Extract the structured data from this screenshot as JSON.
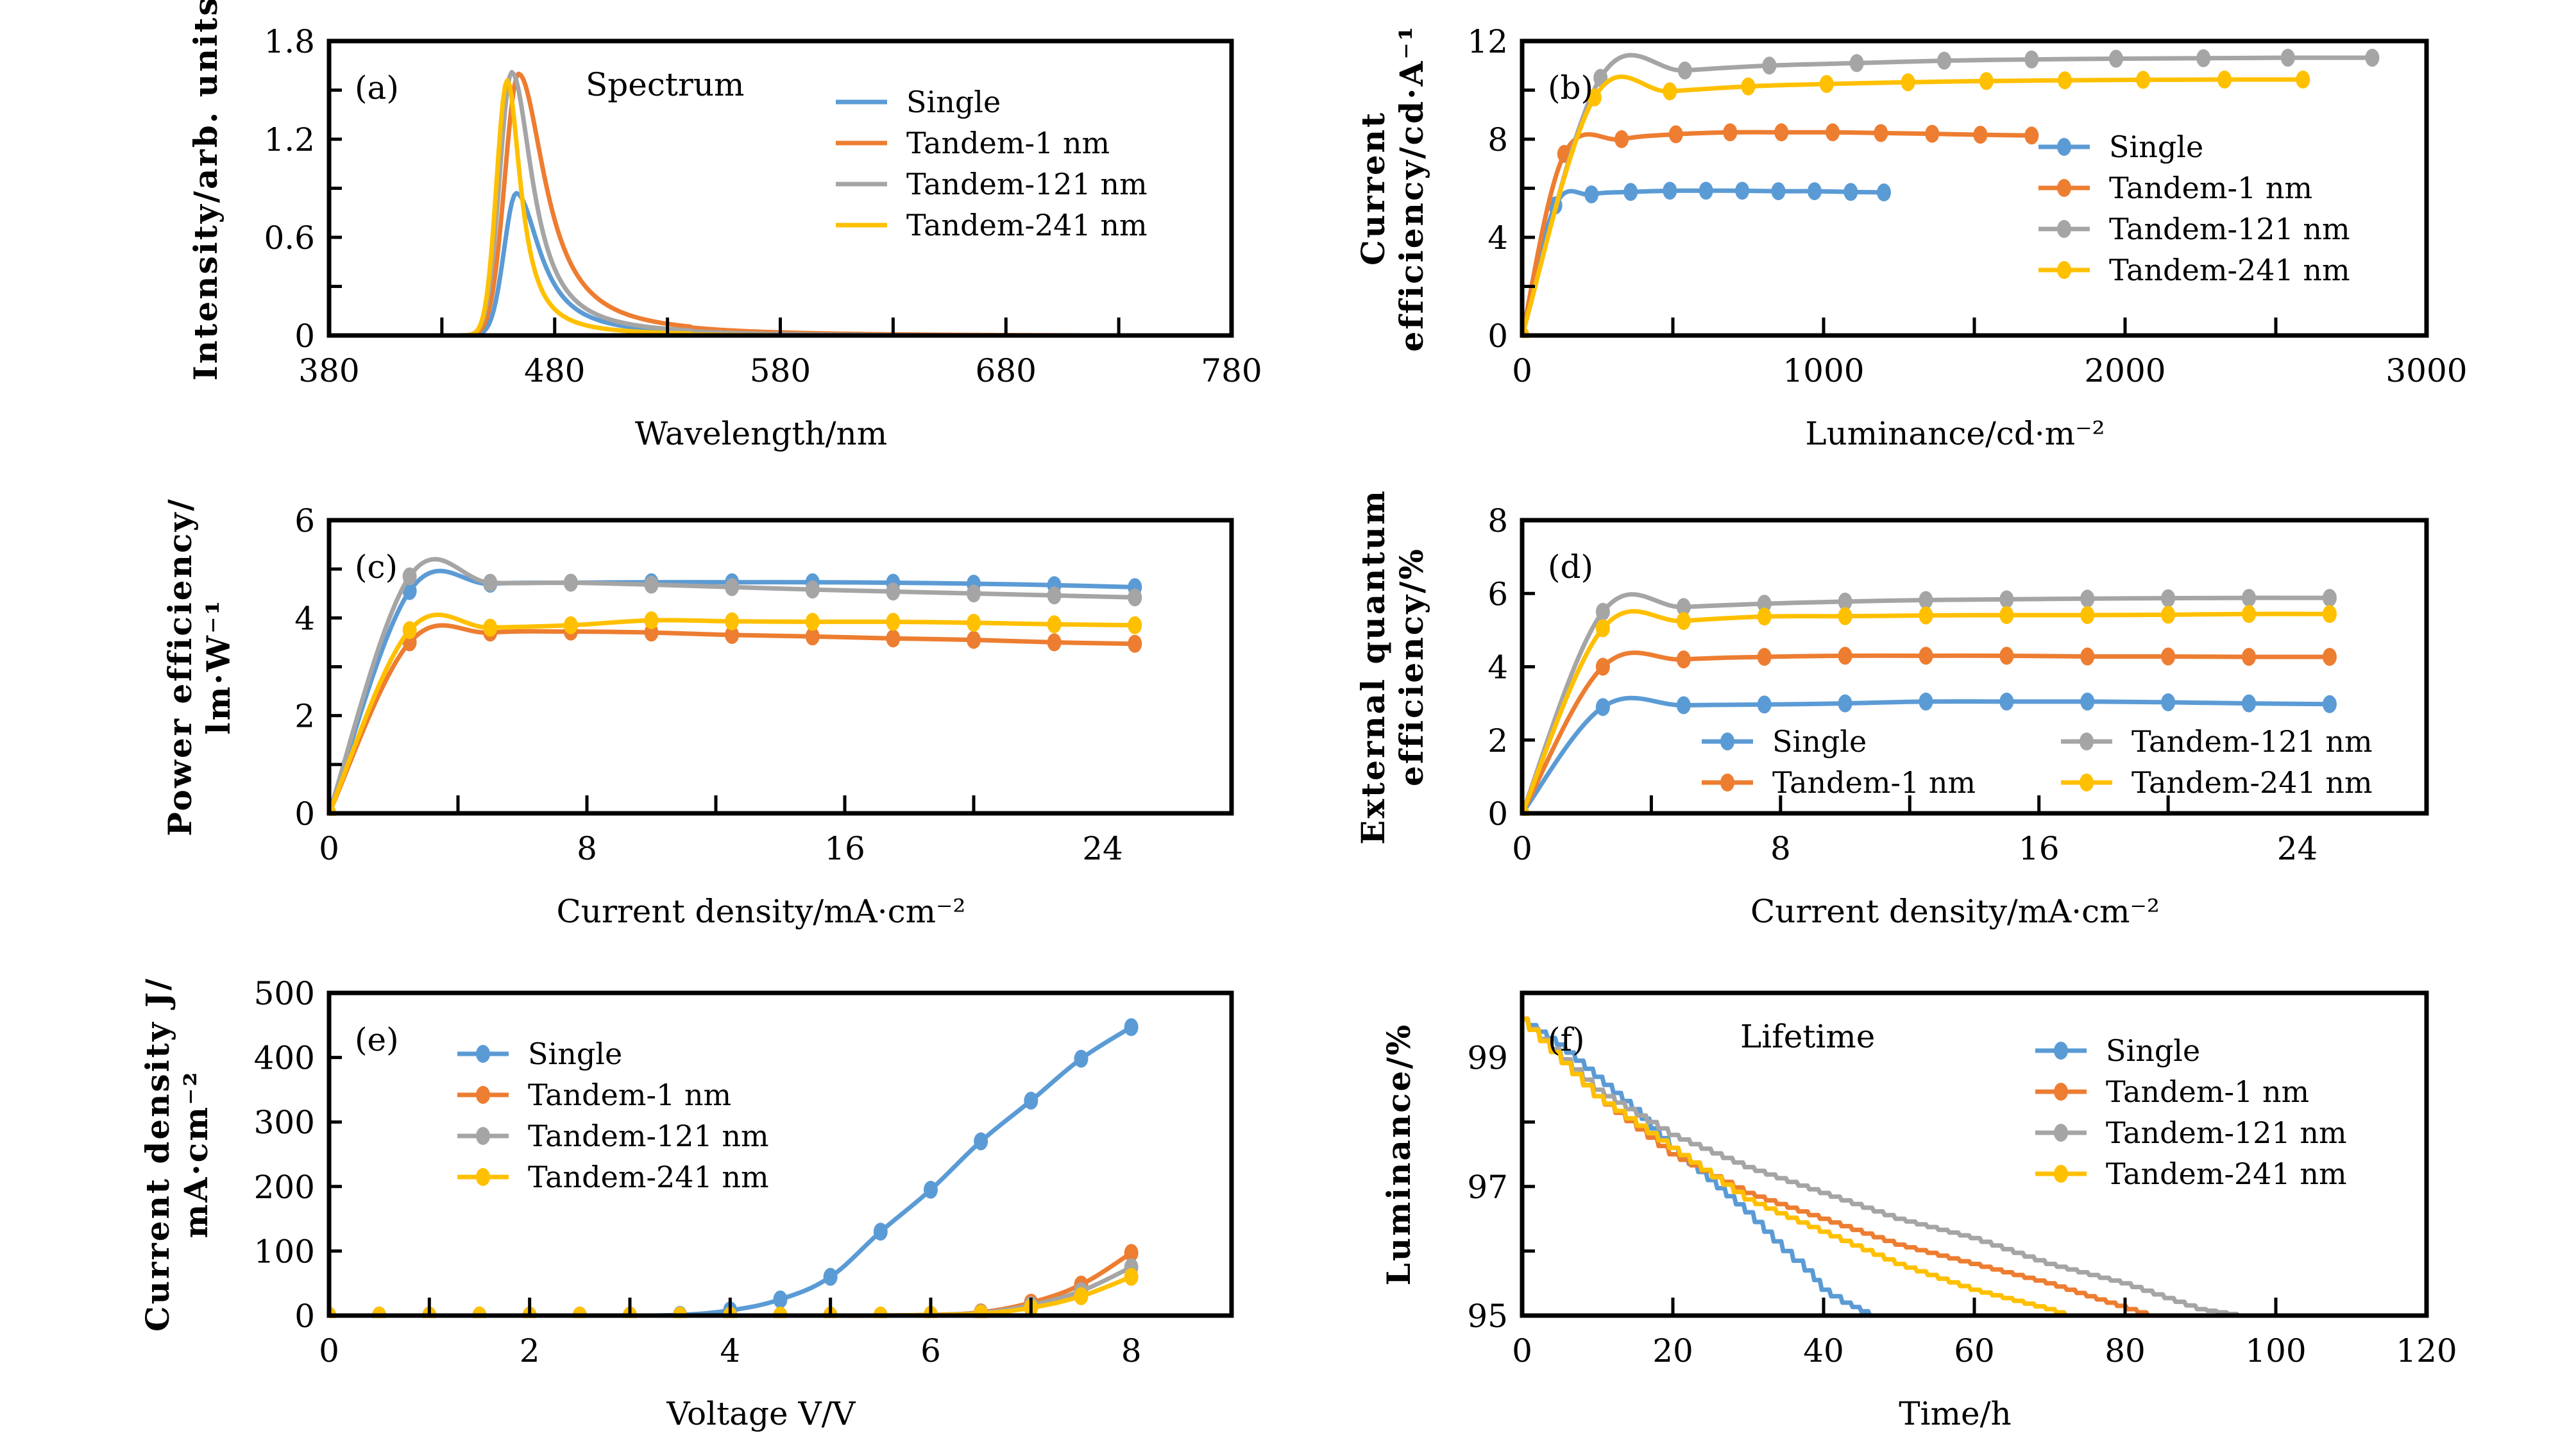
{
  "figure": {
    "series_names": [
      "Single",
      "Tandem-1 nm",
      "Tandem-121 nm",
      "Tandem-241 nm"
    ],
    "colors": {
      "Single": "#5b9bd5",
      "Tandem-1 nm": "#ed7d31",
      "Tandem-121 nm": "#a5a5a5",
      "Tandem-241 nm": "#ffc000"
    }
  },
  "chart_data": [
    {
      "id": "a",
      "type": "line",
      "panel_tag": "(a)",
      "title": "Spectrum",
      "xlabel": "Wavelength/nm",
      "ylabel": "Intensity/arb. units",
      "xlim": [
        380,
        780
      ],
      "ylim": [
        0,
        1.8
      ],
      "xticks": [
        380,
        480,
        580,
        680,
        780
      ],
      "xtick_labels": [
        "380",
        "480",
        "580",
        "680",
        "780"
      ],
      "xminor": [
        430,
        530,
        630,
        730
      ],
      "yticks": [
        0,
        0.6,
        1.2,
        1.8
      ],
      "ytick_labels": [
        "0",
        "0.6",
        "1.2",
        "1.8"
      ],
      "yminor": [
        0.3,
        0.9,
        1.5
      ],
      "markers": false,
      "legend": {
        "position": "top-right",
        "columns": 1
      },
      "grid": false,
      "series": [
        {
          "name": "Single",
          "peak_nm": 463,
          "peak": 0.87,
          "width_left": 8,
          "width_right": 16
        },
        {
          "name": "Tandem-1 nm",
          "peak_nm": 464,
          "peak": 1.6,
          "width_left": 9,
          "width_right": 18
        },
        {
          "name": "Tandem-121 nm",
          "peak_nm": 461,
          "peak": 1.61,
          "width_left": 8,
          "width_right": 14
        },
        {
          "name": "Tandem-241 nm",
          "peak_nm": 459,
          "peak": 1.56,
          "width_left": 7,
          "width_right": 9
        }
      ]
    },
    {
      "id": "b",
      "type": "line",
      "panel_tag": "(b)",
      "title": "",
      "xlabel": "Luminance/cd·m⁻²",
      "ylabel_lines": [
        "Current",
        "efficiency/cd·A⁻¹"
      ],
      "xlim": [
        0,
        3000
      ],
      "ylim": [
        0,
        12
      ],
      "xticks": [
        0,
        1000,
        2000,
        3000
      ],
      "xtick_labels": [
        "0",
        "1000",
        "2000",
        "3000"
      ],
      "xminor": [
        500,
        1500,
        2500
      ],
      "yticks": [
        0,
        4,
        8,
        12
      ],
      "ytick_labels": [
        "0",
        "4",
        "8",
        "12"
      ],
      "yminor": [
        2,
        6,
        10
      ],
      "markers": true,
      "legend": {
        "position": "center-right",
        "columns": 1
      },
      "grid": false,
      "series": [
        {
          "name": "Single",
          "x": [
            0,
            110,
            230,
            360,
            490,
            610,
            730,
            850,
            970,
            1090,
            1200
          ],
          "y": [
            0,
            5.3,
            5.75,
            5.85,
            5.9,
            5.9,
            5.9,
            5.88,
            5.88,
            5.85,
            5.83
          ]
        },
        {
          "name": "Tandem-1 nm",
          "x": [
            0,
            140,
            330,
            510,
            690,
            860,
            1030,
            1190,
            1360,
            1520,
            1690
          ],
          "y": [
            0,
            7.4,
            8.0,
            8.2,
            8.28,
            8.28,
            8.28,
            8.25,
            8.22,
            8.18,
            8.15
          ]
        },
        {
          "name": "Tandem-121 nm",
          "x": [
            0,
            260,
            540,
            820,
            1110,
            1400,
            1690,
            1970,
            2260,
            2540,
            2820
          ],
          "y": [
            0,
            10.5,
            10.8,
            11.0,
            11.1,
            11.2,
            11.25,
            11.28,
            11.3,
            11.32,
            11.32
          ]
        },
        {
          "name": "Tandem-241 nm",
          "x": [
            0,
            240,
            490,
            750,
            1010,
            1280,
            1540,
            1800,
            2060,
            2330,
            2590
          ],
          "y": [
            0,
            9.7,
            9.95,
            10.15,
            10.25,
            10.32,
            10.37,
            10.4,
            10.42,
            10.43,
            10.43
          ]
        }
      ]
    },
    {
      "id": "c",
      "type": "line",
      "panel_tag": "(c)",
      "title": "",
      "xlabel": "Current density/mA·cm⁻²",
      "ylabel_lines": [
        "Power efficiency/",
        "lm·W⁻¹"
      ],
      "xlim": [
        0,
        28
      ],
      "ylim": [
        0,
        6
      ],
      "xticks": [
        0,
        8,
        16,
        24
      ],
      "xtick_labels": [
        "0",
        "8",
        "16",
        "24"
      ],
      "xminor": [
        4,
        12,
        20
      ],
      "yticks": [
        0,
        2,
        4,
        6
      ],
      "ytick_labels": [
        "0",
        "2",
        "4",
        "6"
      ],
      "yminor": [
        1,
        3,
        5
      ],
      "markers": true,
      "legend": null,
      "grid": false,
      "series": [
        {
          "name": "Single",
          "x": [
            0,
            2.5,
            5,
            7.5,
            10,
            12.5,
            15,
            17.5,
            20,
            22.5,
            25
          ],
          "y": [
            0,
            4.55,
            4.7,
            4.72,
            4.73,
            4.73,
            4.73,
            4.72,
            4.7,
            4.67,
            4.63
          ]
        },
        {
          "name": "Tandem-1 nm",
          "x": [
            0,
            2.5,
            5,
            7.5,
            10,
            12.5,
            15,
            17.5,
            20,
            22.5,
            25
          ],
          "y": [
            0,
            3.5,
            3.7,
            3.72,
            3.7,
            3.65,
            3.62,
            3.58,
            3.55,
            3.5,
            3.47
          ]
        },
        {
          "name": "Tandem-121 nm",
          "x": [
            0,
            2.5,
            5,
            7.5,
            10,
            12.5,
            15,
            17.5,
            20,
            22.5,
            25
          ],
          "y": [
            0,
            4.85,
            4.72,
            4.72,
            4.68,
            4.63,
            4.58,
            4.54,
            4.5,
            4.46,
            4.42
          ]
        },
        {
          "name": "Tandem-241 nm",
          "x": [
            0,
            2.5,
            5,
            7.5,
            10,
            12.5,
            15,
            17.5,
            20,
            22.5,
            25
          ],
          "y": [
            0,
            3.75,
            3.8,
            3.85,
            3.95,
            3.93,
            3.92,
            3.92,
            3.9,
            3.87,
            3.85
          ]
        }
      ]
    },
    {
      "id": "d",
      "type": "line",
      "panel_tag": "(d)",
      "title": "",
      "xlabel": "Current density/mA·cm⁻²",
      "ylabel_lines": [
        "External quantum",
        "efficiency/%"
      ],
      "xlim": [
        0,
        28
      ],
      "ylim": [
        0,
        8
      ],
      "xticks": [
        0,
        8,
        16,
        24
      ],
      "xtick_labels": [
        "0",
        "8",
        "16",
        "24"
      ],
      "xminor": [
        4,
        12,
        20
      ],
      "yticks": [
        0,
        2,
        4,
        6,
        8
      ],
      "ytick_labels": [
        "0",
        "2",
        "4",
        "6",
        "8"
      ],
      "yminor": [],
      "markers": true,
      "legend": {
        "position": "lower-right",
        "columns": 2
      },
      "grid": false,
      "series": [
        {
          "name": "Single",
          "x": [
            0,
            2.5,
            5,
            7.5,
            10,
            12.5,
            15,
            17.5,
            20,
            22.5,
            25
          ],
          "y": [
            0,
            2.9,
            2.95,
            2.97,
            3.0,
            3.05,
            3.05,
            3.05,
            3.03,
            3.0,
            2.98
          ]
        },
        {
          "name": "Tandem-1 nm",
          "x": [
            0,
            2.5,
            5,
            7.5,
            10,
            12.5,
            15,
            17.5,
            20,
            22.5,
            25
          ],
          "y": [
            0,
            4.0,
            4.2,
            4.27,
            4.3,
            4.3,
            4.3,
            4.28,
            4.28,
            4.27,
            4.27
          ]
        },
        {
          "name": "Tandem-121 nm",
          "x": [
            0,
            2.5,
            5,
            7.5,
            10,
            12.5,
            15,
            17.5,
            20,
            22.5,
            25
          ],
          "y": [
            0,
            5.5,
            5.63,
            5.72,
            5.78,
            5.82,
            5.84,
            5.86,
            5.87,
            5.88,
            5.88
          ]
        },
        {
          "name": "Tandem-241 nm",
          "x": [
            0,
            2.5,
            5,
            7.5,
            10,
            12.5,
            15,
            17.5,
            20,
            22.5,
            25
          ],
          "y": [
            0,
            5.05,
            5.25,
            5.37,
            5.38,
            5.4,
            5.41,
            5.41,
            5.42,
            5.44,
            5.44
          ]
        }
      ]
    },
    {
      "id": "e",
      "type": "line",
      "panel_tag": "(e)",
      "title": "",
      "xlabel": "Voltage V/V",
      "ylabel_lines": [
        "Current density J/",
        "mA·cm⁻²"
      ],
      "xlim": [
        0,
        9
      ],
      "ylim": [
        0,
        500
      ],
      "xticks": [
        0,
        2,
        4,
        6,
        8
      ],
      "xtick_labels": [
        "0",
        "2",
        "4",
        "6",
        "8"
      ],
      "xminor": [
        1,
        3,
        5,
        7
      ],
      "yticks": [
        0,
        100,
        200,
        300,
        400,
        500
      ],
      "ytick_labels": [
        "0",
        "100",
        "200",
        "300",
        "400",
        "500"
      ],
      "yminor": [],
      "markers": true,
      "legend": {
        "position": "top-left",
        "columns": 1
      },
      "grid": false,
      "series": [
        {
          "name": "Single",
          "x": [
            0,
            0.5,
            1,
            1.5,
            2,
            2.5,
            3,
            3.5,
            4,
            4.5,
            5,
            5.5,
            6,
            6.5,
            7,
            7.5,
            8
          ],
          "y": [
            0,
            0,
            0,
            0,
            0,
            0,
            0,
            1,
            8,
            25,
            60,
            130,
            195,
            270,
            333,
            398,
            447
          ]
        },
        {
          "name": "Tandem-1 nm",
          "x": [
            0,
            0.5,
            1,
            1.5,
            2,
            2.5,
            3,
            3.5,
            4,
            4.5,
            5,
            5.5,
            6,
            6.5,
            7,
            7.5,
            8
          ],
          "y": [
            0,
            0,
            0,
            0,
            0,
            0,
            0,
            0,
            0,
            0,
            0,
            0,
            1,
            5,
            20,
            48,
            97
          ]
        },
        {
          "name": "Tandem-121 nm",
          "x": [
            0,
            0.5,
            1,
            1.5,
            2,
            2.5,
            3,
            3.5,
            4,
            4.5,
            5,
            5.5,
            6,
            6.5,
            7,
            7.5,
            8
          ],
          "y": [
            0,
            0,
            0,
            0,
            0,
            0,
            0,
            0,
            0,
            0,
            0,
            0,
            1,
            4,
            16,
            38,
            75
          ]
        },
        {
          "name": "Tandem-241 nm",
          "x": [
            0,
            0.5,
            1,
            1.5,
            2,
            2.5,
            3,
            3.5,
            4,
            4.5,
            5,
            5.5,
            6,
            6.5,
            7,
            7.5,
            8
          ],
          "y": [
            0,
            0,
            0,
            0,
            0,
            0,
            0,
            0,
            0,
            0,
            0,
            0,
            1,
            3,
            12,
            30,
            60
          ]
        }
      ]
    },
    {
      "id": "f",
      "type": "line",
      "panel_tag": "(f)",
      "title": "Lifetime",
      "xlabel": "Time/h",
      "ylabel": "Luminance/%",
      "xlim": [
        0,
        120
      ],
      "ylim": [
        95,
        100
      ],
      "xticks": [
        0,
        20,
        40,
        60,
        80,
        100,
        120
      ],
      "xtick_labels": [
        "0",
        "20",
        "40",
        "60",
        "80",
        "100",
        "120"
      ],
      "xminor": [],
      "yticks": [
        95,
        97,
        99
      ],
      "ytick_labels": [
        "95",
        "97",
        "99"
      ],
      "yminor": [
        96,
        98
      ],
      "markers": false,
      "legend_markers": true,
      "legend": {
        "position": "top-right",
        "columns": 1
      },
      "grid": false,
      "series": [
        {
          "name": "Single",
          "x": [
            0,
            5,
            10,
            15,
            20,
            25,
            30,
            35,
            38,
            40,
            43,
            46.5
          ],
          "y": [
            99.6,
            99.2,
            98.7,
            98.2,
            97.6,
            97.1,
            96.6,
            96.0,
            95.7,
            95.4,
            95.2,
            95.0
          ]
        },
        {
          "name": "Tandem-1 nm",
          "x": [
            0,
            10,
            20,
            30,
            40,
            50,
            60,
            70,
            78,
            83.5
          ],
          "y": [
            99.6,
            98.4,
            97.5,
            96.9,
            96.5,
            96.1,
            95.8,
            95.5,
            95.2,
            95.0
          ]
        },
        {
          "name": "Tandem-121 nm",
          "x": [
            0,
            10,
            20,
            30,
            40,
            50,
            60,
            70,
            80,
            90,
            95.5
          ],
          "y": [
            99.6,
            98.5,
            97.8,
            97.3,
            96.9,
            96.5,
            96.2,
            95.8,
            95.5,
            95.1,
            95.0
          ]
        },
        {
          "name": "Tandem-241 nm",
          "x": [
            0,
            10,
            20,
            30,
            40,
            50,
            60,
            70,
            72.5
          ],
          "y": [
            99.6,
            98.4,
            97.6,
            96.8,
            96.3,
            95.8,
            95.4,
            95.1,
            95.0
          ]
        }
      ]
    }
  ]
}
